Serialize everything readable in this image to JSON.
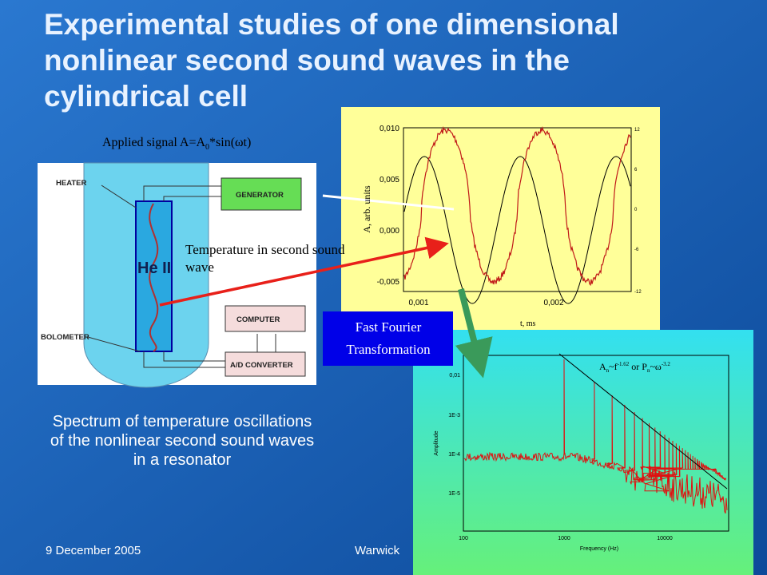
{
  "title": "Experimental studies of one dimensional nonlinear second sound waves in the cylindrical cell",
  "annotations": {
    "applied_signal": [
      "Applied signal A=A",
      "0",
      "*sin(ωt)"
    ],
    "temperature": "Temperature in second sound wave",
    "fft": "Fast Fourier Transformation"
  },
  "apparatus": {
    "heater": "HEATER",
    "generator": "GENERATOR",
    "helium": "He II",
    "bolometer": "BOLOMETER",
    "computer": "COMPUTER",
    "converter": "A/D CONVERTER"
  },
  "signal_plot": {
    "yticks": [
      "0,010",
      "0,005",
      "0,000",
      "-0,005"
    ],
    "xticks": [
      "0,001",
      "0,002"
    ],
    "y2ticks": [
      "12",
      "6",
      "0",
      "-6",
      "-12"
    ],
    "ylabel": "A, arb. units",
    "xlabel": "t, ms"
  },
  "spectrum_plot": {
    "yticks": [
      "0,01",
      "1E-3",
      "1E-4",
      "1E-5"
    ],
    "xticks": [
      "100",
      "1000",
      "10000"
    ],
    "ylabel": "Amplitude",
    "xlabel": "Frequency (Hz)",
    "formula": [
      "A",
      "n",
      "~f",
      "-1.62",
      " or P",
      "n",
      "~ω",
      "-3.2"
    ]
  },
  "caption": "Spectrum of temperature oscillations of the nonlinear second sound waves in a resonator",
  "footer": {
    "date": "9 December 2005",
    "place": "Warwick"
  }
}
